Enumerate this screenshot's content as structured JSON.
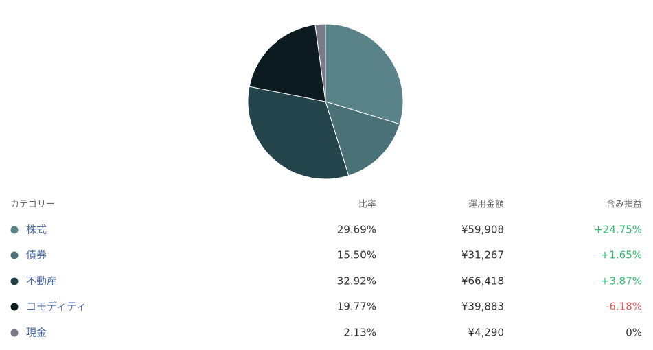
{
  "chart_data": {
    "type": "pie",
    "categories": [
      "株式",
      "債券",
      "不動産",
      "コモディティ",
      "現金"
    ],
    "values": [
      29.69,
      15.5,
      32.92,
      19.77,
      2.13
    ],
    "value_labels": [
      "29.69%",
      "15.50%",
      "32.92%",
      "19.77%",
      "2.13%"
    ],
    "colors": [
      "#5a8389",
      "#4b7178",
      "#23444b",
      "#0c1b20",
      "#7b7a8a"
    ]
  },
  "table": {
    "headers": [
      "カテゴリー",
      "比率",
      "運用金額",
      "含み損益"
    ],
    "rows": [
      {
        "amount": "¥59,908",
        "gain": "+24.75%",
        "gain_color": "#2dbd6e"
      },
      {
        "amount": "¥31,267",
        "gain": "+1.65%",
        "gain_color": "#2dbd6e"
      },
      {
        "amount": "¥66,418",
        "gain": "+3.87%",
        "gain_color": "#2dbd6e"
      },
      {
        "amount": "¥39,883",
        "gain": "-6.18%",
        "gain_color": "#e05a5a"
      },
      {
        "amount": "¥4,290",
        "gain": "0%",
        "gain_color": "#333333"
      }
    ]
  }
}
